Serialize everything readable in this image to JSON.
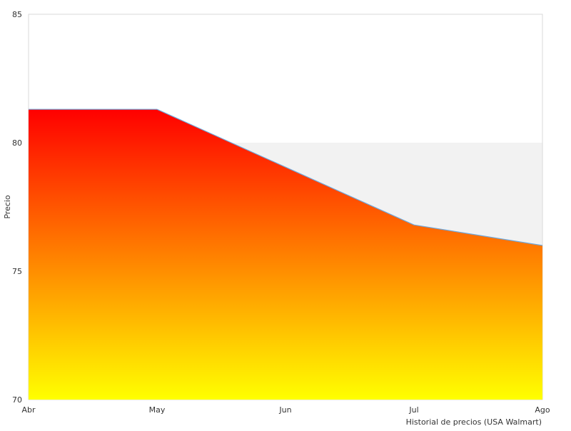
{
  "chart_data": {
    "type": "area",
    "x": [
      "Abr",
      "May",
      "Jun",
      "Jul",
      "Ago"
    ],
    "values": [
      81.3,
      81.3,
      79.05,
      76.8,
      76.0
    ],
    "xlabel": "",
    "ylabel": "Precio",
    "ylim": [
      70,
      85
    ],
    "yticks": [
      70,
      75,
      80,
      85
    ],
    "caption": "Historial de precios (USA Walmart)",
    "grid": true,
    "band": [
      75,
      80
    ],
    "colors": {
      "fill_top": "#ff0000",
      "fill_bottom": "#ffff00",
      "line": "#6fa8dc",
      "band": "#f2f2f2",
      "frame": "#d9d9d9",
      "text": "#333333"
    }
  }
}
